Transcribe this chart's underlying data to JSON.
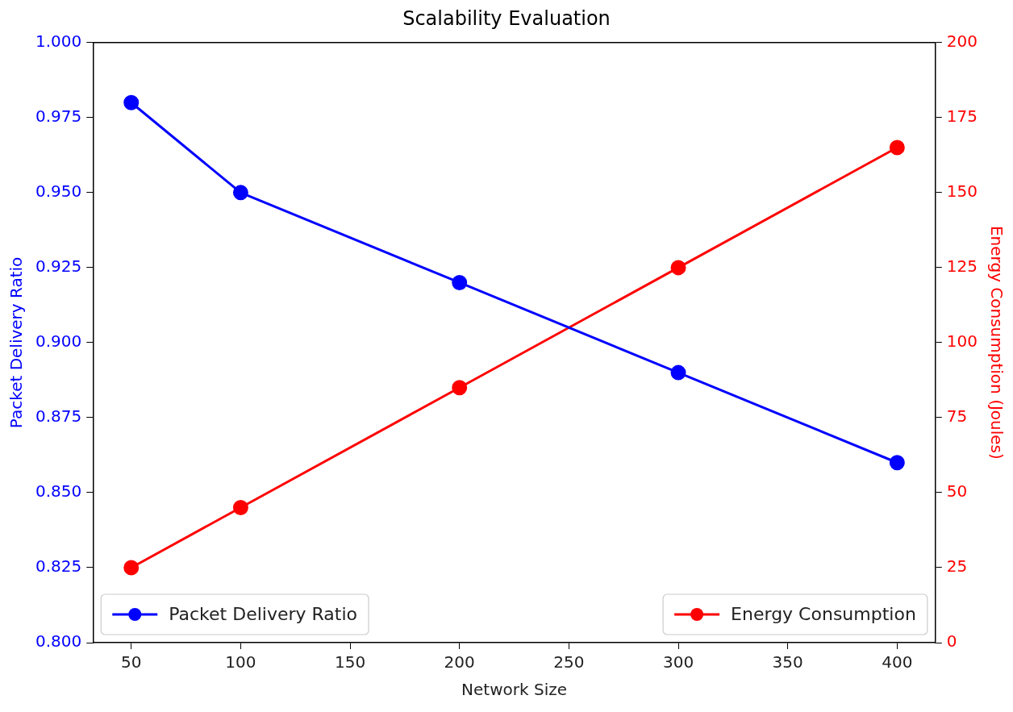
{
  "chart_data": {
    "type": "line",
    "title": "Scalability Evaluation",
    "xlabel": "Network Size",
    "ylabel": "Packet Delivery Ratio",
    "y2label": "Energy Consumption (Joules)",
    "x": [
      50,
      100,
      200,
      300,
      400
    ],
    "series": [
      {
        "name": "Packet Delivery Ratio",
        "color": "#0000ff",
        "values": [
          0.98,
          0.95,
          0.92,
          0.89,
          0.86
        ]
      },
      {
        "name": "Energy Consumption",
        "color": "#ff0000",
        "values": [
          25,
          45,
          85,
          125,
          165
        ],
        "axis": "y2"
      }
    ],
    "xlim": [
      32.5,
      417.5
    ],
    "xticks": [
      50,
      100,
      150,
      200,
      250,
      300,
      350,
      400
    ],
    "ylim": [
      0.8,
      1.0
    ],
    "yticks": [
      {
        "value": 0.8,
        "label": "0.800"
      },
      {
        "value": 0.825,
        "label": "0.825"
      },
      {
        "value": 0.85,
        "label": "0.850"
      },
      {
        "value": 0.875,
        "label": "0.875"
      },
      {
        "value": 0.9,
        "label": "0.900"
      },
      {
        "value": 0.925,
        "label": "0.925"
      },
      {
        "value": 0.95,
        "label": "0.950"
      },
      {
        "value": 0.975,
        "label": "0.975"
      },
      {
        "value": 1.0,
        "label": "1.000"
      }
    ],
    "y2lim": [
      0,
      200
    ],
    "y2ticks": [
      0,
      25,
      50,
      75,
      100,
      125,
      150,
      175,
      200
    ],
    "grid": false,
    "legend": "bottom",
    "marker": "circle",
    "line_style": "solid"
  }
}
